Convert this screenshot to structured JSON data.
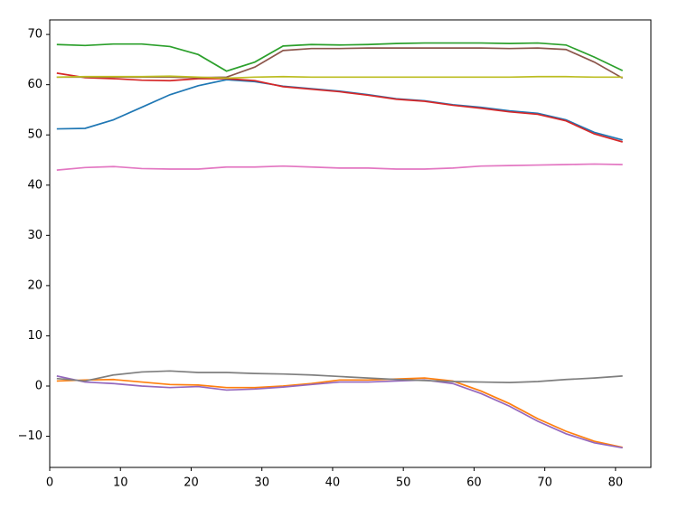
{
  "chart_data": {
    "type": "line",
    "x": [
      1,
      5,
      9,
      13,
      17,
      21,
      25,
      29,
      33,
      37,
      41,
      45,
      49,
      53,
      57,
      61,
      65,
      69,
      73,
      77,
      81
    ],
    "series": [
      {
        "color": "#1f77b4",
        "values": [
          51.2,
          51.3,
          53,
          55.5,
          58,
          59.8,
          61,
          60.6,
          59.7,
          59.2,
          58.7,
          58,
          57.2,
          56.8,
          56,
          55.5,
          54.8,
          54.3,
          53,
          50.5,
          49
        ]
      },
      {
        "color": "#ff7f0e",
        "values": [
          1,
          1.2,
          1.3,
          0.8,
          0.3,
          0.2,
          -0.3,
          -0.3,
          0,
          0.5,
          1.2,
          1.2,
          1.4,
          1.6,
          1,
          -1,
          -3.5,
          -6.5,
          -9,
          -11,
          -12.2
        ]
      },
      {
        "color": "#2ca02c",
        "values": [
          68,
          67.8,
          68.1,
          68.1,
          67.6,
          66,
          62.7,
          64.5,
          67.7,
          68,
          67.9,
          68,
          68.2,
          68.3,
          68.3,
          68.3,
          68.2,
          68.3,
          67.9,
          65.5,
          62.8
        ]
      },
      {
        "color": "#d62728",
        "values": [
          62.3,
          61.4,
          61.2,
          60.9,
          60.8,
          61.2,
          61.2,
          60.8,
          59.6,
          59.1,
          58.6,
          57.9,
          57.1,
          56.7,
          55.9,
          55.3,
          54.6,
          54.1,
          52.8,
          50.2,
          48.6
        ]
      },
      {
        "color": "#9467bd",
        "values": [
          2,
          0.8,
          0.5,
          0,
          -0.3,
          -0.1,
          -0.8,
          -0.6,
          -0.2,
          0.3,
          0.8,
          0.8,
          1,
          1.2,
          0.5,
          -1.5,
          -4,
          -7,
          -9.5,
          -11.3,
          -12.3
        ]
      },
      {
        "color": "#8c564b",
        "values": [
          61.5,
          61.5,
          61.5,
          61.5,
          61.5,
          61.4,
          61.5,
          63.5,
          66.8,
          67.2,
          67.2,
          67.3,
          67.3,
          67.3,
          67.3,
          67.3,
          67.2,
          67.3,
          67,
          64.5,
          61.3
        ]
      },
      {
        "color": "#e377c2",
        "values": [
          43,
          43.5,
          43.7,
          43.3,
          43.2,
          43.2,
          43.6,
          43.6,
          43.8,
          43.6,
          43.4,
          43.4,
          43.2,
          43.2,
          43.4,
          43.8,
          43.9,
          44,
          44.1,
          44.2,
          44.1
        ]
      },
      {
        "color": "#7f7f7f",
        "values": [
          1.5,
          1,
          2.2,
          2.8,
          3,
          2.7,
          2.7,
          2.5,
          2.4,
          2.2,
          1.9,
          1.6,
          1.3,
          1.1,
          0.9,
          0.8,
          0.7,
          0.9,
          1.3,
          1.6,
          2
        ]
      },
      {
        "color": "#bcbd22",
        "values": [
          61.5,
          61.6,
          61.6,
          61.6,
          61.7,
          61.5,
          61.3,
          61.5,
          61.6,
          61.5,
          61.5,
          61.5,
          61.5,
          61.5,
          61.5,
          61.5,
          61.5,
          61.6,
          61.6,
          61.5,
          61.5
        ]
      }
    ],
    "xlim": [
      0,
      85
    ],
    "ylim": [
      -16.2,
      72.9
    ],
    "xticks": [
      0,
      10,
      20,
      30,
      40,
      50,
      60,
      70,
      80
    ],
    "yticks": [
      {
        "value": -10,
        "label": "−10"
      },
      0,
      10,
      20,
      30,
      40,
      50,
      60,
      70
    ],
    "grid": false
  }
}
